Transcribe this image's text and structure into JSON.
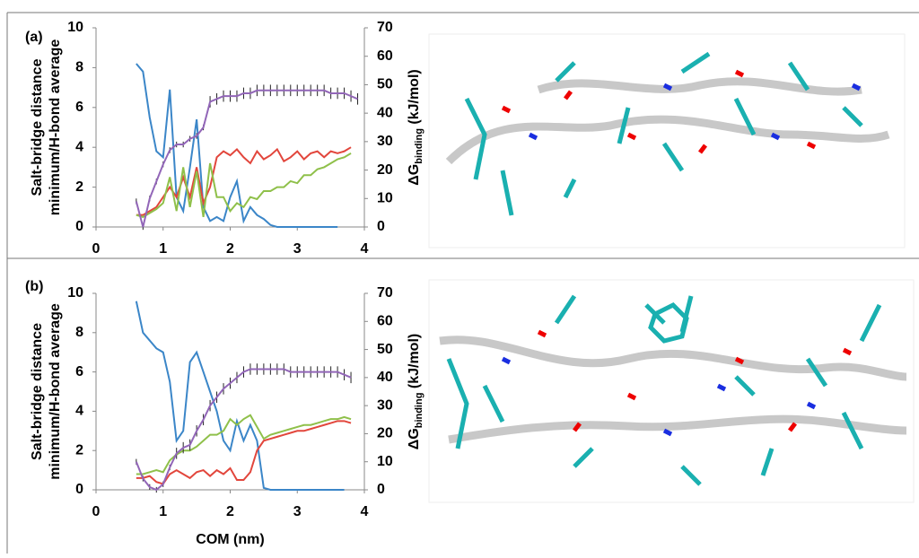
{
  "chart_data": [
    {
      "type": "line",
      "panel_label": "(a)",
      "ylabel": [
        "Salt-bridge distance",
        "minimum/H-bond average"
      ],
      "y2label": {
        "main": "ΔG",
        "sub": "binding",
        "unit": " (kJ/mol)"
      },
      "xlim": [
        0,
        4
      ],
      "xticks": [
        0,
        1,
        2,
        3,
        4
      ],
      "ylim": [
        0,
        10
      ],
      "yticks": [
        0,
        2,
        4,
        6,
        8,
        10
      ],
      "y2lim": [
        0,
        70
      ],
      "y2ticks": [
        0,
        10,
        20,
        30,
        40,
        50,
        60,
        70
      ],
      "x": [
        0.6,
        0.7,
        0.8,
        0.9,
        1.0,
        1.1,
        1.2,
        1.3,
        1.4,
        1.5,
        1.6,
        1.7,
        1.8,
        1.9,
        2.0,
        2.1,
        2.2,
        2.3,
        2.4,
        2.5,
        2.6,
        2.7,
        2.8,
        2.9,
        3.0,
        3.1,
        3.2,
        3.3,
        3.4,
        3.5,
        3.6,
        3.7,
        3.8,
        3.9
      ],
      "series": [
        {
          "color": "#3b86c8",
          "values": [
            8.2,
            7.8,
            5.5,
            3.8,
            3.5,
            6.9,
            1.5,
            0.8,
            3.0,
            5.4,
            1.0,
            0.3,
            0.5,
            0.3,
            1.5,
            2.3,
            0.3,
            1.0,
            0.6,
            0.4,
            0.1,
            0,
            0,
            0,
            0,
            0,
            0,
            0,
            0,
            0,
            0,
            null,
            null,
            null
          ]
        },
        {
          "color": "#e2463c",
          "values": [
            0.6,
            0.6,
            0.8,
            1.0,
            1.5,
            2.0,
            1.5,
            2.5,
            1.5,
            3.0,
            1.2,
            2.0,
            3.5,
            3.8,
            3.6,
            3.9,
            3.5,
            3.2,
            3.8,
            3.4,
            3.6,
            3.9,
            3.3,
            3.5,
            3.8,
            3.4,
            3.7,
            3.8,
            3.5,
            3.8,
            3.7,
            3.8,
            4.0,
            null
          ]
        },
        {
          "color": "#8fc04a",
          "values": [
            0.6,
            0.5,
            0.7,
            0.9,
            1.2,
            2.5,
            0.8,
            3.0,
            1.0,
            2.8,
            0.5,
            3.2,
            1.5,
            1.5,
            0.8,
            1.2,
            1.0,
            1.5,
            1.4,
            1.8,
            1.8,
            2.0,
            2.0,
            2.3,
            2.2,
            2.6,
            2.6,
            2.9,
            3.0,
            3.2,
            3.4,
            3.5,
            3.7,
            null
          ]
        },
        {
          "color": "#9266b8",
          "axis": "y2",
          "values": [
            9,
            0,
            10,
            16,
            22,
            27,
            29,
            29,
            31,
            32,
            35,
            44,
            45,
            46,
            46,
            46,
            47,
            47,
            48,
            48,
            48,
            48,
            48,
            48,
            48,
            48,
            48,
            48,
            48,
            47,
            47,
            47,
            46,
            45
          ],
          "errors": [
            1,
            1,
            1,
            1,
            1,
            1,
            1,
            1,
            1,
            1,
            1,
            2,
            2,
            2,
            2,
            2,
            2,
            2,
            2,
            2,
            2,
            2,
            2,
            2,
            2,
            2,
            2,
            2,
            2,
            2,
            2,
            2,
            2,
            2
          ]
        }
      ]
    },
    {
      "type": "line",
      "panel_label": "(b)",
      "ylabel": [
        "Salt-bridge distance",
        "minimum/H-bond average"
      ],
      "y2label": {
        "main": "ΔG",
        "sub": "binding",
        "unit": " (kJ/mol)"
      },
      "xlabel": "COM (nm)",
      "xlim": [
        0,
        4
      ],
      "xticks": [
        0,
        1,
        2,
        3,
        4
      ],
      "ylim": [
        0,
        10
      ],
      "yticks": [
        0,
        2,
        4,
        6,
        8,
        10
      ],
      "y2lim": [
        0,
        70
      ],
      "y2ticks": [
        0,
        10,
        20,
        30,
        40,
        50,
        60,
        70
      ],
      "x": [
        0.6,
        0.7,
        0.8,
        0.9,
        1.0,
        1.1,
        1.2,
        1.3,
        1.4,
        1.5,
        1.6,
        1.7,
        1.8,
        1.9,
        2.0,
        2.1,
        2.2,
        2.3,
        2.4,
        2.5,
        2.6,
        2.7,
        2.8,
        2.9,
        3.0,
        3.1,
        3.2,
        3.3,
        3.4,
        3.5,
        3.6,
        3.7,
        3.8,
        3.9
      ],
      "series": [
        {
          "color": "#3b86c8",
          "values": [
            9.6,
            8.0,
            7.6,
            7.2,
            7.0,
            5.5,
            2.5,
            3.0,
            6.5,
            7.0,
            6.0,
            5.0,
            4.0,
            2.5,
            2.0,
            3.5,
            2.5,
            3.3,
            2.5,
            0.1,
            0,
            0,
            0,
            0,
            0,
            0,
            0,
            0,
            0,
            0,
            0,
            0,
            null,
            null
          ]
        },
        {
          "color": "#e2463c",
          "values": [
            0.6,
            0.6,
            0.7,
            0.4,
            0.3,
            0.8,
            1.0,
            0.8,
            0.6,
            0.9,
            1.0,
            0.7,
            1.0,
            0.8,
            1.1,
            0.5,
            0.5,
            0.9,
            2.0,
            2.5,
            2.6,
            2.7,
            2.8,
            2.9,
            3.0,
            3.0,
            3.1,
            3.2,
            3.3,
            3.4,
            3.5,
            3.5,
            3.4,
            null
          ]
        },
        {
          "color": "#8fc04a",
          "values": [
            0.8,
            0.8,
            0.9,
            1.0,
            0.9,
            1.5,
            1.8,
            2.0,
            2.0,
            2.2,
            2.5,
            2.8,
            2.8,
            3.0,
            3.6,
            3.3,
            3.6,
            3.8,
            3.2,
            2.6,
            2.8,
            2.9,
            3.0,
            3.1,
            3.2,
            3.3,
            3.3,
            3.4,
            3.5,
            3.6,
            3.6,
            3.7,
            3.6,
            null
          ]
        },
        {
          "color": "#9266b8",
          "axis": "y2",
          "values": [
            10,
            4,
            1,
            0,
            2,
            8,
            13,
            15,
            16,
            21,
            25,
            30,
            33,
            36,
            38,
            40,
            42,
            43,
            43,
            43,
            43,
            43,
            43,
            42,
            42,
            42,
            42,
            42,
            42,
            42,
            42,
            41,
            40,
            null
          ],
          "errors": [
            1,
            1,
            1,
            1,
            1,
            1,
            2,
            2,
            2,
            2,
            2,
            2,
            2,
            2,
            2,
            2,
            2,
            2,
            2,
            2,
            2,
            2,
            2,
            2,
            2,
            2,
            2,
            2,
            2,
            2,
            2,
            2,
            2,
            null
          ]
        }
      ]
    }
  ]
}
